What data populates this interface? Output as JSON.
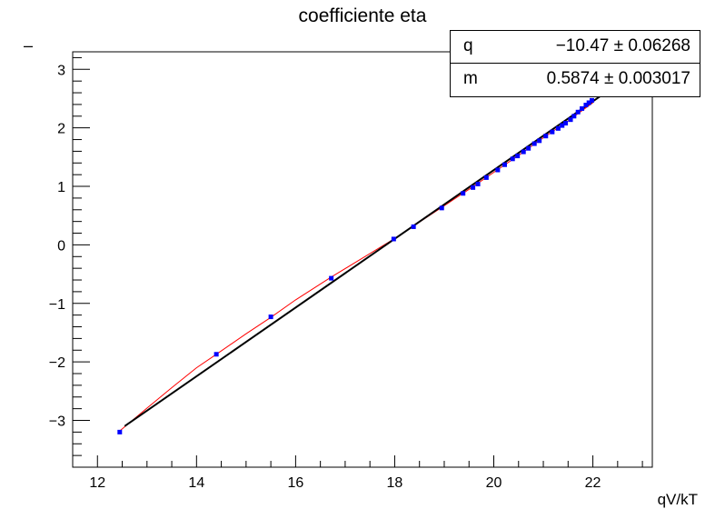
{
  "chart_data": {
    "type": "scatter",
    "title": "coefficiente eta",
    "ylabel": "–",
    "xlabel": "qV/kT",
    "xlim": [
      11.5,
      23.2
    ],
    "ylim": [
      -3.8,
      3.3
    ],
    "xticks": [
      "12",
      "14",
      "16",
      "18",
      "20",
      "22"
    ],
    "yticks": [
      "−3",
      "−2",
      "−1",
      "0",
      "1",
      "2",
      "3"
    ],
    "colors": {
      "points": "#0000ff",
      "fit": "#000000",
      "curve": "#ff0000"
    },
    "series": [
      {
        "x": [
          12.45,
          14.4,
          15.5,
          16.72,
          17.98,
          18.38,
          18.95,
          19.38,
          19.58,
          19.68,
          19.85,
          20.08,
          20.22,
          20.38,
          20.48,
          20.6,
          20.7,
          20.82,
          20.92,
          21.05,
          21.18,
          21.3,
          21.38,
          21.45,
          21.55,
          21.62,
          21.7,
          21.78,
          21.86,
          21.92,
          21.98
        ],
        "y": [
          -3.2,
          -1.87,
          -1.23,
          -0.57,
          0.1,
          0.31,
          0.63,
          0.88,
          0.98,
          1.04,
          1.15,
          1.28,
          1.37,
          1.47,
          1.52,
          1.59,
          1.65,
          1.73,
          1.78,
          1.86,
          1.93,
          1.99,
          2.04,
          2.08,
          2.14,
          2.2,
          2.27,
          2.33,
          2.39,
          2.43,
          2.47
        ]
      }
    ],
    "fit": {
      "x": [
        12.55,
        22.2
      ],
      "q": -10.47,
      "m": 0.5874
    },
    "curve": {
      "x": [
        12.45,
        13.0,
        13.5,
        14.0,
        14.4,
        15.0,
        15.5,
        16.0,
        16.72,
        17.4,
        17.98,
        18.5,
        19.0,
        19.5,
        20.0,
        20.5,
        21.0,
        21.5,
        22.0
      ],
      "y": [
        -3.18,
        -2.79,
        -2.44,
        -2.1,
        -1.87,
        -1.52,
        -1.24,
        -0.94,
        -0.55,
        -0.2,
        0.1,
        0.39,
        0.67,
        0.95,
        1.24,
        1.53,
        1.83,
        2.12,
        2.43
      ]
    },
    "stats": [
      {
        "key": "q",
        "value": "−10.47 ± 0.06268"
      },
      {
        "key": "m",
        "value": "0.5874 ± 0.003017"
      }
    ]
  }
}
